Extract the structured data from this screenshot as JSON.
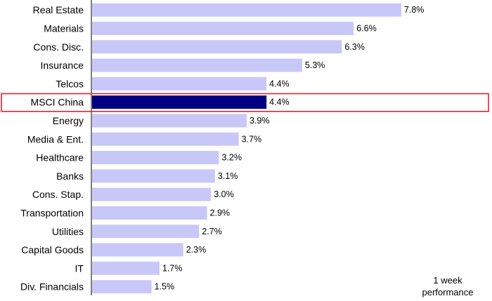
{
  "chart_data": {
    "type": "bar",
    "orientation": "horizontal",
    "categories": [
      "Real Estate",
      "Materials",
      "Cons. Disc.",
      "Insurance",
      "Telcos",
      "MSCI China",
      "Energy",
      "Media & Ent.",
      "Healthcare",
      "Banks",
      "Cons. Stap.",
      "Transportation",
      "Utilities",
      "Capital Goods",
      "IT",
      "Div. Financials"
    ],
    "values": [
      7.8,
      6.6,
      6.3,
      5.3,
      4.4,
      4.4,
      3.9,
      3.7,
      3.2,
      3.1,
      3.0,
      2.9,
      2.7,
      2.3,
      1.7,
      1.5
    ],
    "value_labels": [
      "7.8%",
      "6.6%",
      "6.3%",
      "5.3%",
      "4.4%",
      "4.4%",
      "3.9%",
      "3.7%",
      "3.2%",
      "3.1%",
      "3.0%",
      "2.9%",
      "2.7%",
      "2.3%",
      "1.7%",
      "1.5%"
    ],
    "highlight": "MSCI China",
    "xlim": [
      0,
      10
    ],
    "grid": false,
    "colors": {
      "bar": "#c8c8f8",
      "highlight_bar": "#000080",
      "highlight_box": "#e8202a",
      "axis": "#000000"
    },
    "annotation_line1": "1 week",
    "annotation_line2": "performance"
  }
}
